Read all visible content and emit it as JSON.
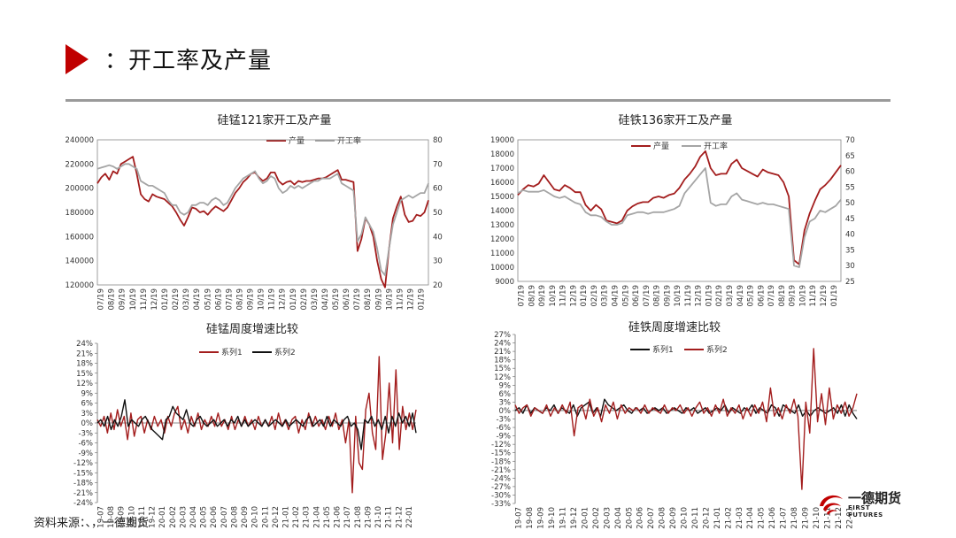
{
  "header": {
    "title": "：开工率及产量"
  },
  "footer": {
    "source": "资料来源：、，一德期货"
  },
  "logo": {
    "name_cn": "一德期货",
    "name_en": "FIRST FUTURES"
  },
  "chart_data": [
    {
      "id": "simn-output",
      "type": "line",
      "title": "硅锰121家开工及产量",
      "series": [
        {
          "name": "产量",
          "axis": "left",
          "color": "#a31d1d",
          "values": [
            204000,
            209000,
            212000,
            207000,
            214000,
            212000,
            220000,
            222000,
            224000,
            226000,
            212000,
            195000,
            191000,
            189000,
            195000,
            193000,
            192000,
            191000,
            188000,
            185000,
            180000,
            174000,
            169000,
            176000,
            184000,
            183000,
            180000,
            181000,
            178000,
            182000,
            185000,
            183000,
            181000,
            184000,
            190000,
            196000,
            200000,
            205000,
            208000,
            212000,
            213000,
            209000,
            206000,
            208000,
            213000,
            213000,
            206000,
            203000,
            205000,
            206000,
            203000,
            206000,
            205000,
            206000,
            206000,
            207000,
            208000,
            208000,
            209000,
            211000,
            213000,
            215000,
            207000,
            207000,
            206000,
            205000,
            148000,
            158000,
            175000,
            170000,
            160000,
            140000,
            125000,
            118000,
            150000,
            175000,
            185000,
            193000,
            178000,
            172000,
            173000,
            178000,
            177000,
            180000,
            190000
          ]
        },
        {
          "name": "开工率",
          "axis": "right",
          "color": "#a5a5a5",
          "values": [
            68,
            68.5,
            69,
            69.5,
            69,
            68,
            69,
            70,
            70,
            69,
            68,
            63,
            62,
            61,
            61,
            60,
            59,
            58,
            55,
            53,
            53,
            50,
            49,
            50,
            53,
            53,
            54,
            54,
            53,
            55,
            56,
            55,
            53,
            54,
            57,
            60,
            62,
            64,
            65,
            66,
            67,
            64,
            62,
            63,
            65,
            64,
            60,
            58,
            59,
            61,
            60,
            61,
            60,
            61,
            62,
            63,
            63,
            64,
            64,
            64,
            65,
            66,
            62,
            61,
            60,
            59,
            38,
            41,
            48,
            45,
            42,
            35,
            26,
            24,
            35,
            45,
            50,
            55,
            56,
            57,
            56,
            57,
            58,
            58,
            62
          ]
        }
      ],
      "x_ticks": [
        "07/19",
        "08/19",
        "09/19",
        "10/19",
        "11/19",
        "12/19",
        "01/19",
        "02/19",
        "03/19",
        "04/19",
        "05/19",
        "06/19",
        "07/19",
        "08/19",
        "09/19",
        "10/19",
        "11/19",
        "12/19",
        "01/19",
        "02/19",
        "03/19",
        "04/19",
        "05/19",
        "06/19",
        "07/19",
        "08/19",
        "09/19",
        "10/19",
        "11/19",
        "12/19",
        "01/19"
      ],
      "y_left_ticks": [
        "240000",
        "220000",
        "200000",
        "180000",
        "160000",
        "140000",
        "120000"
      ],
      "y_right_ticks": [
        "80",
        "70",
        "60",
        "50",
        "40",
        "30",
        "20"
      ],
      "ylim_left": [
        120000,
        240000
      ],
      "ylim_right": [
        20,
        80
      ],
      "legend": "top-center"
    },
    {
      "id": "fesi-output",
      "type": "line",
      "title": "硅铁136家开工及产量",
      "series": [
        {
          "name": "产量",
          "axis": "left",
          "color": "#a31d1d",
          "values": [
            15100,
            15500,
            15800,
            15700,
            15900,
            16500,
            16000,
            15500,
            15400,
            15800,
            15600,
            15300,
            15300,
            14400,
            14000,
            14400,
            14100,
            13300,
            13200,
            13100,
            13300,
            14000,
            14300,
            14500,
            14600,
            14600,
            14900,
            15000,
            14900,
            15100,
            15200,
            15600,
            16200,
            16600,
            17100,
            17800,
            18200,
            17000,
            16500,
            16600,
            16600,
            17300,
            17600,
            17000,
            16800,
            16600,
            16400,
            16900,
            16700,
            16600,
            16500,
            16000,
            15000,
            10500,
            10200,
            12600,
            13800,
            14700,
            15500,
            15800,
            16200,
            16700,
            17200
          ]
        },
        {
          "name": "开工率",
          "axis": "right",
          "color": "#a5a5a5",
          "values": [
            53,
            54,
            53.5,
            53.5,
            53.5,
            54,
            53,
            52,
            51.5,
            52,
            51,
            50,
            49.5,
            47,
            46,
            46,
            45.5,
            44,
            43,
            43,
            43.5,
            46,
            46.5,
            47,
            47,
            46.5,
            47,
            47,
            47,
            47.5,
            48,
            49,
            53,
            55,
            57,
            59,
            61,
            50,
            49,
            49.5,
            49.5,
            52,
            53,
            51,
            50.5,
            50,
            49.5,
            50,
            49.5,
            49.5,
            49,
            48.5,
            48,
            30,
            29.5,
            39,
            44,
            45,
            47.5,
            47,
            48,
            49,
            51
          ]
        }
      ],
      "x_ticks": [
        "07/19",
        "08/19",
        "09/19",
        "10/19",
        "11/19",
        "12/19",
        "01/19",
        "02/19",
        "03/19",
        "04/19",
        "05/19",
        "06/19",
        "07/19",
        "08/19",
        "09/19",
        "10/19",
        "11/19",
        "12/19",
        "01/19",
        "02/19",
        "03/19",
        "04/19",
        "05/19",
        "06/19",
        "07/19",
        "08/19",
        "09/19",
        "10/19",
        "11/19",
        "12/19",
        "01/19"
      ],
      "y_left_ticks": [
        "19000",
        "18000",
        "17000",
        "16000",
        "15000",
        "14000",
        "13000",
        "12000",
        "11000",
        "10000",
        "9000"
      ],
      "y_right_ticks": [
        "70",
        "65",
        "60",
        "55",
        "50",
        "45",
        "40",
        "35",
        "30",
        "25"
      ],
      "ylim_left": [
        9000,
        19000
      ],
      "ylim_right": [
        25,
        70
      ],
      "legend": "top-center"
    },
    {
      "id": "simn-weekly",
      "type": "line",
      "title": "硅锰周度增速比较",
      "series": [
        {
          "name": "系列1",
          "color": "#a31d1d",
          "values": [
            1,
            -1,
            2,
            -3,
            3,
            -2,
            4,
            -1,
            2,
            -5,
            3,
            -4,
            1,
            2,
            -3,
            1,
            -2,
            2,
            -1,
            1,
            -3,
            2,
            -1,
            3,
            5,
            -2,
            1,
            -3,
            2,
            -1,
            3,
            -2,
            1,
            -1,
            2,
            -1,
            3,
            -1,
            1,
            -2,
            2,
            -2,
            1,
            -1,
            2,
            -1,
            1,
            -2,
            2,
            -1,
            1,
            -1,
            2,
            -2,
            3,
            -1,
            1,
            -2,
            1,
            2,
            -3,
            1,
            -2,
            3,
            -1,
            2,
            -1,
            1,
            -2,
            2,
            -1,
            3,
            -2,
            1,
            -6,
            1,
            -21,
            2,
            -12,
            -14,
            4,
            9,
            -3,
            -8,
            20,
            -11,
            -3,
            12,
            -6,
            16,
            -8,
            5,
            -2,
            3,
            -2,
            4
          ]
        },
        {
          "name": "系列2",
          "color": "#111111",
          "values": [
            0,
            1,
            -1,
            2,
            -2,
            1,
            -1,
            2,
            7,
            -1,
            1,
            0,
            -1,
            1,
            2,
            0,
            -2,
            -3,
            -4,
            -5,
            1,
            2,
            5,
            3,
            2,
            1,
            4,
            0,
            -1,
            1,
            2,
            0,
            -1,
            0,
            1,
            -1,
            0,
            1,
            -1,
            1,
            0,
            2,
            -1,
            1,
            -1,
            0,
            1,
            0,
            -1,
            1,
            -1,
            0,
            1,
            0,
            -1,
            1,
            -1,
            0,
            1,
            0,
            -1,
            1,
            2,
            -1,
            0,
            1,
            -1,
            2,
            -1,
            1,
            0,
            -1,
            1,
            2,
            -1,
            0,
            -2,
            -8,
            1,
            0,
            2,
            -1,
            1,
            -2,
            2,
            -3,
            2,
            -1,
            3,
            0,
            2,
            -1,
            3,
            -3
          ]
        }
      ],
      "x_ticks": [
        "19-07",
        "19-08",
        "19-09",
        "19-10",
        "19-11",
        "19-12",
        "20-01",
        "20-02",
        "20-03",
        "20-04",
        "20-05",
        "20-06",
        "20-07",
        "20-08",
        "20-09",
        "20-10",
        "20-11",
        "20-12",
        "21-01",
        "21-02",
        "21-03",
        "21-04",
        "21-05",
        "21-06",
        "21-07",
        "21-08",
        "21-09",
        "21-10",
        "21-11",
        "21-12",
        "22-01"
      ],
      "y_ticks": [
        "24%",
        "21%",
        "18%",
        "15%",
        "12%",
        "9%",
        "6%",
        "3%",
        "0%",
        "-3%",
        "-6%",
        "-9%",
        "-12%",
        "-15%",
        "-18%",
        "-21%",
        "-24%"
      ],
      "ylim": [
        -24,
        24
      ],
      "legend": "top-left"
    },
    {
      "id": "fesi-weekly",
      "type": "line",
      "title": "硅铁周度增速比较",
      "series": [
        {
          "name": "系列1",
          "color": "#111111",
          "values": [
            0,
            1,
            -1,
            2,
            -1,
            1,
            0,
            -1,
            1,
            0,
            2,
            -1,
            1,
            0,
            -1,
            2,
            -2,
            1,
            2,
            3,
            -1,
            1,
            -2,
            4,
            2,
            1,
            0,
            1,
            2,
            0,
            -1,
            1,
            0,
            1,
            -1,
            0,
            1,
            0,
            1,
            -1,
            0,
            1,
            0,
            -1,
            1,
            0,
            1,
            -1,
            0,
            1,
            -1,
            0,
            1,
            0,
            2,
            -1,
            1,
            0,
            -1,
            1,
            0,
            2,
            -1,
            1,
            0,
            -1,
            2,
            1,
            -2,
            2,
            1,
            0,
            -1,
            2,
            -2,
            0,
            -2,
            0,
            1,
            0,
            -1,
            0,
            1,
            -1,
            2,
            -2,
            2,
            -1,
            -3
          ]
        },
        {
          "name": "系列2",
          "color": "#a31d1d",
          "values": [
            2,
            -1,
            1,
            2,
            -2,
            1,
            0,
            -1,
            2,
            -2,
            1,
            -1,
            2,
            -1,
            3,
            -9,
            1,
            2,
            -3,
            4,
            -2,
            1,
            -4,
            2,
            -1,
            3,
            -3,
            2,
            -1,
            1,
            0,
            1,
            -1,
            2,
            -1,
            1,
            0,
            -1,
            2,
            -1,
            1,
            0,
            2,
            -1,
            1,
            -2,
            1,
            3,
            -1,
            1,
            -2,
            2,
            -1,
            4,
            -2,
            1,
            -1,
            2,
            -3,
            1,
            -2,
            2,
            -1,
            3,
            -4,
            8,
            -2,
            1,
            -3,
            2,
            -1,
            4,
            -2,
            -28,
            3,
            -8,
            22,
            -4,
            6,
            -5,
            8,
            -3,
            2,
            -1,
            3,
            -2,
            1,
            6
          ]
        }
      ],
      "x_ticks": [
        "19-07",
        "19-08",
        "19-09",
        "19-10",
        "19-11",
        "19-12",
        "20-01",
        "20-02",
        "20-03",
        "20-04",
        "20-05",
        "20-06",
        "20-07",
        "20-08",
        "20-09",
        "20-10",
        "20-11",
        "20-12",
        "21-01",
        "21-02",
        "21-03",
        "21-04",
        "21-05",
        "21-06",
        "21-07",
        "21-08",
        "21-09",
        "21-10",
        "21-11",
        "21-12",
        "22-01"
      ],
      "y_ticks": [
        "27%",
        "24%",
        "21%",
        "18%",
        "15%",
        "12%",
        "9%",
        "6%",
        "3%",
        "0%",
        "-3%",
        "-6%",
        "-9%",
        "-12%",
        "-15%",
        "-18%",
        "-21%",
        "-24%",
        "-27%",
        "-30%",
        "-33%"
      ],
      "ylim": [
        -33,
        27
      ],
      "legend": "top-left"
    }
  ]
}
